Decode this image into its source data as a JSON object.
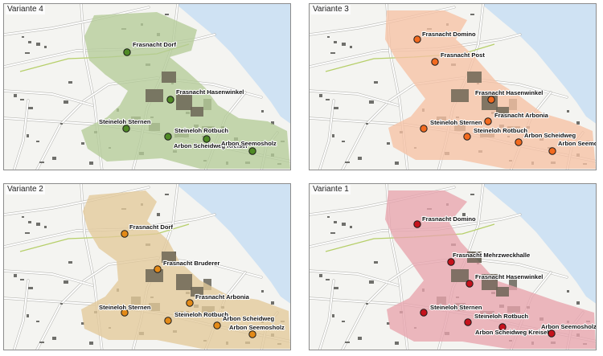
{
  "panels": [
    {
      "title": "Variante 4",
      "color": "#b5cc98",
      "dot": "#4f8a25",
      "stops": [
        {
          "name": "Frasnacht Dorf"
        },
        {
          "name": "Frasnacht Hasenwinkel"
        },
        {
          "name": "Steineloh Sternen"
        },
        {
          "name": "Steineloh Rotbuch"
        },
        {
          "name": "Arbon Scheidweg Kreisel"
        },
        {
          "name": "Arbon Seemosholz"
        }
      ]
    },
    {
      "title": "Variante 3",
      "color": "#f6c1a4",
      "dot": "#f26a1f",
      "stops": [
        {
          "name": "Frasnacht Domino"
        },
        {
          "name": "Frasnacht Post"
        },
        {
          "name": "Frasnacht Hasenwinkel"
        },
        {
          "name": "Frasnacht Arbonia"
        },
        {
          "name": "Steineloh Sternen"
        },
        {
          "name": "Steineloh Rotbuch"
        },
        {
          "name": "Arbon Scheidweg"
        },
        {
          "name": "Arbon Seemosholz"
        }
      ]
    },
    {
      "title": "Variante 2",
      "color": "#e3c99a",
      "dot": "#e38a18",
      "stops": [
        {
          "name": "Frasnacht Dorf"
        },
        {
          "name": "Frasnacht Bruderer"
        },
        {
          "name": "Frasnacht Arbonia"
        },
        {
          "name": "Steineloh Sternen"
        },
        {
          "name": "Steineloh Rotbuch"
        },
        {
          "name": "Arbon Scheidweg"
        },
        {
          "name": "Arbon Seemosholz"
        }
      ]
    },
    {
      "title": "Variante 1",
      "color": "#e8a4ad",
      "dot": "#c5121c",
      "stops": [
        {
          "name": "Frasnacht Domino"
        },
        {
          "name": "Frasnacht Mehrzweckhalle"
        },
        {
          "name": "Frasnacht Hasenwinkel"
        },
        {
          "name": "Steineloh Sternen"
        },
        {
          "name": "Steineloh Rotbuch"
        },
        {
          "name": "Arbon Scheidweg Kreisel"
        },
        {
          "name": "Arbon Seemosholz"
        }
      ]
    }
  ],
  "base_colors": {
    "land": "#f4f4f1",
    "water": "#cfe2f3",
    "road": "#ffffff",
    "building": "#6f6f6b",
    "green_line": "#b6cf6a"
  }
}
